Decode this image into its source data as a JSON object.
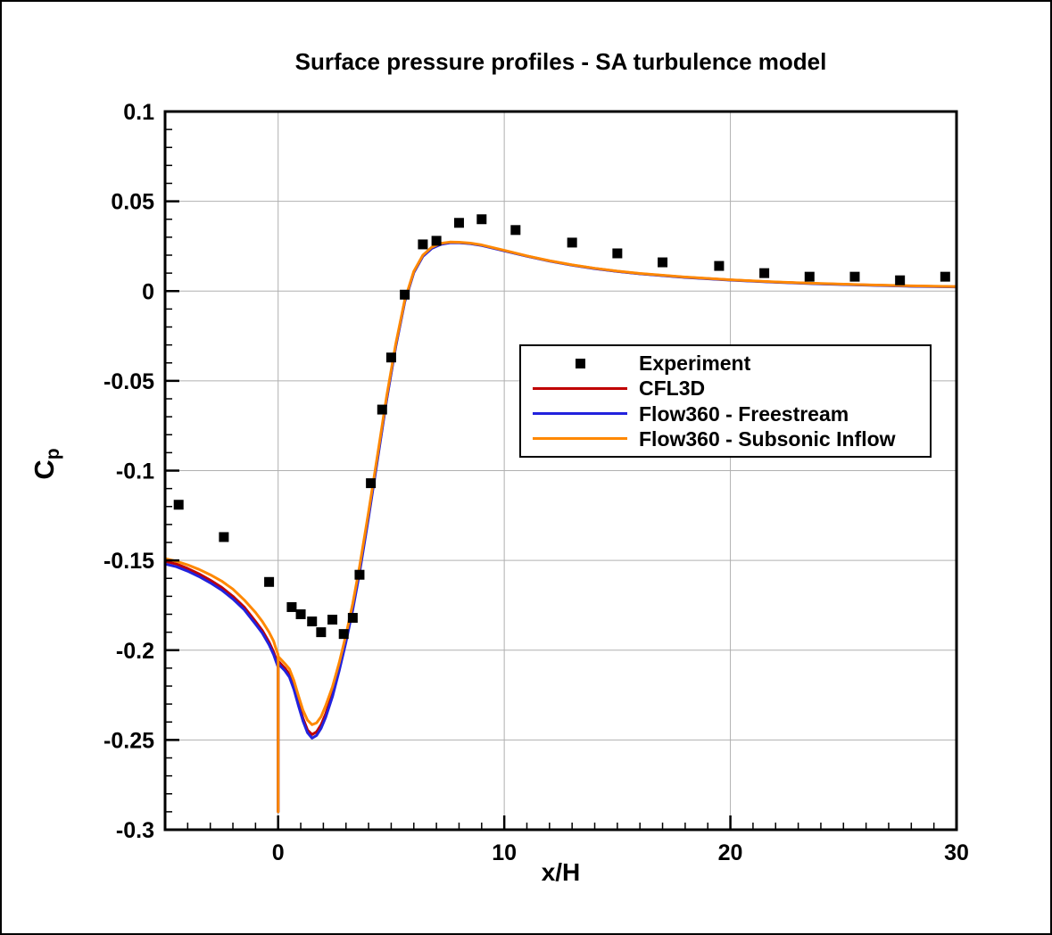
{
  "chart_data": {
    "type": "line",
    "title": "Surface pressure profiles - SA turbulence model",
    "xlabel": "x/H",
    "ylabel": "Cp",
    "ylabel_main": "C",
    "ylabel_sub": "p",
    "xlim": [
      -5,
      30
    ],
    "ylim": [
      -0.3,
      0.1
    ],
    "xticks": [
      0,
      10,
      20,
      30
    ],
    "xtick_labels": [
      "0",
      "10",
      "20",
      "30"
    ],
    "yticks": [
      0.1,
      0.05,
      0,
      -0.05,
      -0.1,
      -0.15,
      -0.2,
      -0.25,
      -0.3
    ],
    "ytick_labels": [
      "0.1",
      "0.05",
      "0",
      "-0.05",
      "-0.1",
      "-0.15",
      "-0.2",
      "-0.25",
      "-0.3"
    ],
    "x_minor_step": 1,
    "y_minor_step": 0.01,
    "grid": true,
    "grid_color": "#b0b0b0",
    "axis_color": "#000000",
    "legend_position": "center-right",
    "line_x": [
      -5,
      -4.5,
      -4,
      -3.5,
      -3,
      -2.5,
      -2,
      -1.5,
      -1,
      -0.7,
      -0.4,
      -0.2,
      -0.1,
      0,
      0,
      0,
      0.15,
      0.3,
      0.5,
      0.7,
      0.9,
      1.1,
      1.3,
      1.5,
      1.7,
      1.9,
      2.1,
      2.4,
      2.7,
      3,
      3.3,
      3.6,
      4,
      4.4,
      4.8,
      5.2,
      5.6,
      6,
      6.4,
      6.8,
      7.2,
      7.6,
      8,
      8.5,
      9,
      10,
      11,
      12,
      13,
      14,
      15,
      16,
      18,
      20,
      22,
      24,
      26,
      28,
      30
    ],
    "series": [
      {
        "name": "Experiment",
        "type": "scatter",
        "color": "#000000",
        "points": [
          [
            -4.4,
            -0.119
          ],
          [
            -2.4,
            -0.137
          ],
          [
            -0.4,
            -0.162
          ],
          [
            0.6,
            -0.176
          ],
          [
            1.0,
            -0.18
          ],
          [
            1.5,
            -0.184
          ],
          [
            1.9,
            -0.19
          ],
          [
            2.4,
            -0.183
          ],
          [
            2.9,
            -0.191
          ],
          [
            3.3,
            -0.182
          ],
          [
            3.6,
            -0.158
          ],
          [
            4.1,
            -0.107
          ],
          [
            4.6,
            -0.066
          ],
          [
            5.0,
            -0.037
          ],
          [
            5.6,
            -0.002
          ],
          [
            6.4,
            0.026
          ],
          [
            7.0,
            0.028
          ],
          [
            8.0,
            0.038
          ],
          [
            9.0,
            0.04
          ],
          [
            10.5,
            0.034
          ],
          [
            13.0,
            0.027
          ],
          [
            15.0,
            0.021
          ],
          [
            17.0,
            0.016
          ],
          [
            19.5,
            0.014
          ],
          [
            21.5,
            0.01
          ],
          [
            23.5,
            0.008
          ],
          [
            25.5,
            0.008
          ],
          [
            27.5,
            0.006
          ],
          [
            29.5,
            0.008
          ]
        ]
      },
      {
        "name": "CFL3D",
        "type": "line",
        "color": "#c00000",
        "y": [
          -0.1505,
          -0.152,
          -0.1545,
          -0.1575,
          -0.161,
          -0.165,
          -0.17,
          -0.176,
          -0.184,
          -0.189,
          -0.1955,
          -0.201,
          -0.2045,
          -0.208,
          -0.29,
          -0.206,
          -0.208,
          -0.21,
          -0.2135,
          -0.2205,
          -0.2295,
          -0.238,
          -0.2445,
          -0.247,
          -0.2455,
          -0.2415,
          -0.2355,
          -0.2245,
          -0.2105,
          -0.1945,
          -0.1765,
          -0.156,
          -0.125,
          -0.0925,
          -0.06,
          -0.0305,
          -0.0055,
          0.0105,
          0.0195,
          0.024,
          0.0262,
          0.027,
          0.027,
          0.0265,
          0.0255,
          0.0225,
          0.0195,
          0.0168,
          0.0145,
          0.0126,
          0.011,
          0.0097,
          0.0077,
          0.0062,
          0.005,
          0.0041,
          0.0034,
          0.0028,
          0.0024
        ]
      },
      {
        "name": "Flow360 - Freestream",
        "type": "line",
        "color": "#2222dd",
        "y": [
          -0.152,
          -0.1535,
          -0.156,
          -0.159,
          -0.1625,
          -0.1665,
          -0.1715,
          -0.1775,
          -0.1855,
          -0.1905,
          -0.197,
          -0.2025,
          -0.206,
          -0.2095,
          -0.29,
          -0.2075,
          -0.2095,
          -0.2115,
          -0.215,
          -0.222,
          -0.231,
          -0.2395,
          -0.246,
          -0.249,
          -0.2475,
          -0.2435,
          -0.2375,
          -0.226,
          -0.2115,
          -0.1955,
          -0.1775,
          -0.157,
          -0.126,
          -0.0935,
          -0.0605,
          -0.031,
          -0.006,
          0.0103,
          0.0193,
          0.0238,
          0.026,
          0.0269,
          0.0269,
          0.0264,
          0.0254,
          0.0224,
          0.0194,
          0.0167,
          0.0144,
          0.0125,
          0.0109,
          0.0096,
          0.0076,
          0.0061,
          0.0049,
          0.004,
          0.0033,
          0.0027,
          0.0023
        ]
      },
      {
        "name": "Flow360 - Subsonic Inflow",
        "type": "line",
        "color": "#ff8800",
        "y": [
          -0.149,
          -0.1505,
          -0.1525,
          -0.155,
          -0.158,
          -0.1615,
          -0.166,
          -0.172,
          -0.179,
          -0.184,
          -0.19,
          -0.195,
          -0.199,
          -0.2025,
          -0.29,
          -0.2035,
          -0.2055,
          -0.2075,
          -0.2105,
          -0.217,
          -0.2255,
          -0.2335,
          -0.239,
          -0.2415,
          -0.2405,
          -0.237,
          -0.231,
          -0.2205,
          -0.207,
          -0.1915,
          -0.174,
          -0.1535,
          -0.123,
          -0.091,
          -0.0585,
          -0.0295,
          -0.005,
          0.011,
          0.02,
          0.0245,
          0.0266,
          0.0273,
          0.0272,
          0.0267,
          0.0257,
          0.0227,
          0.0196,
          0.0169,
          0.0146,
          0.0127,
          0.0111,
          0.0098,
          0.0078,
          0.0063,
          0.0051,
          0.0042,
          0.0035,
          0.0029,
          0.0025
        ]
      }
    ]
  }
}
